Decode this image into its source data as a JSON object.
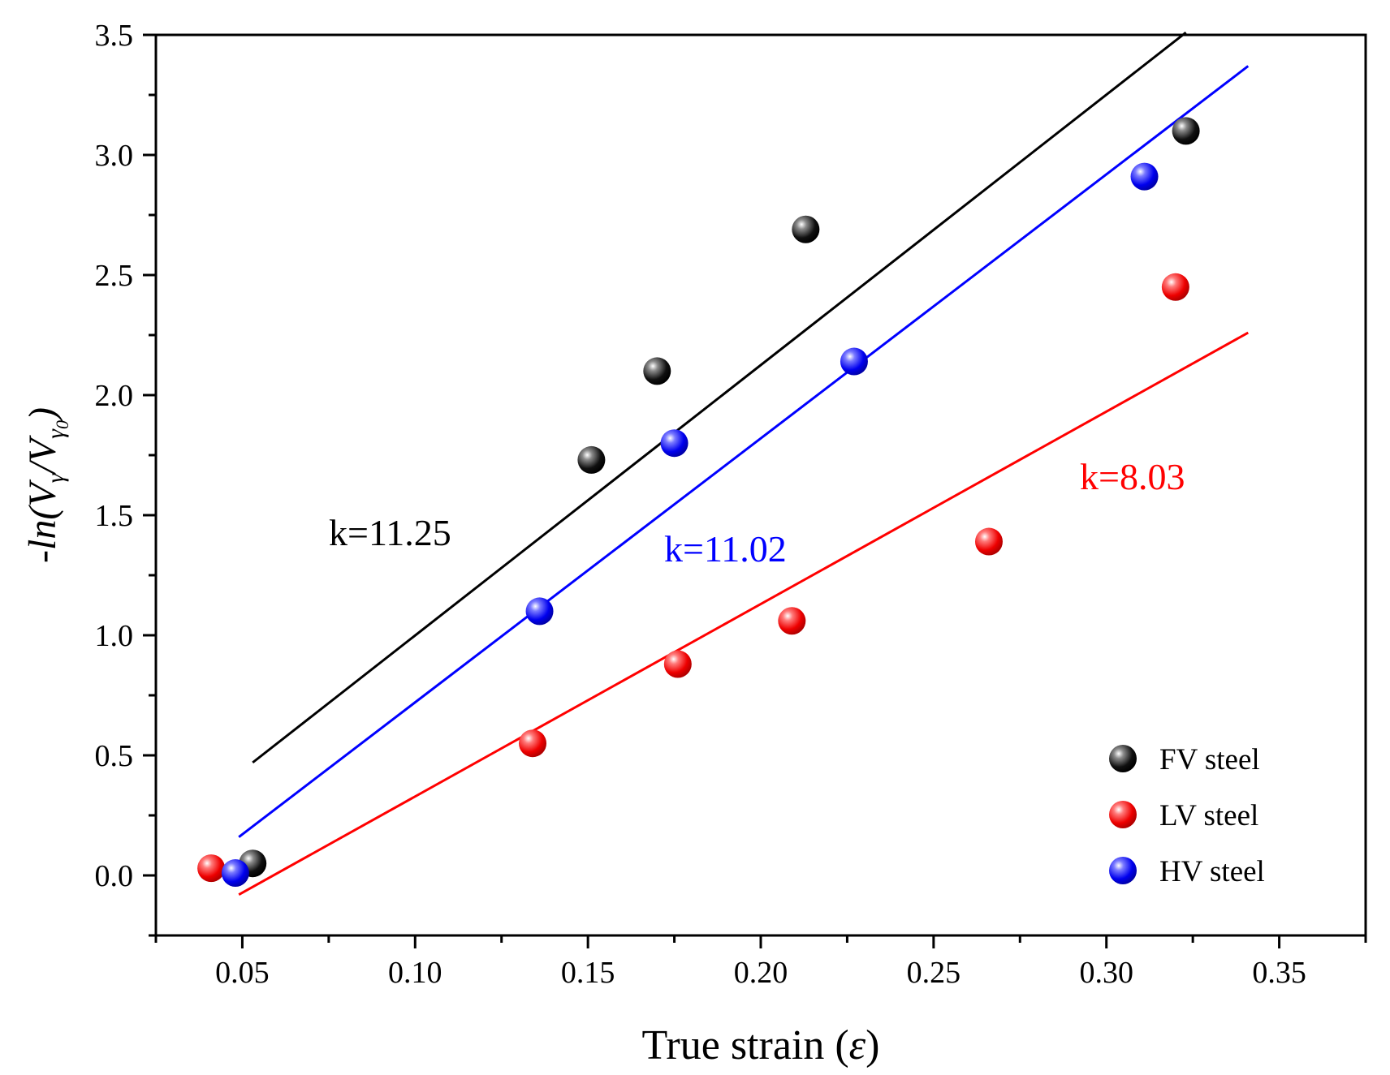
{
  "chart_data": {
    "type": "scatter",
    "xlabel_main": "True strain (",
    "xlabel_symbol": "ε",
    "xlabel_close": ")",
    "ylabel_prefix": "-ln(V",
    "ylabel_sub1": "γ",
    "ylabel_mid": "/V",
    "ylabel_sub2": "γ",
    "ylabel_sub3": "0",
    "ylabel_close": ")",
    "xlim": [
      0.025,
      0.375
    ],
    "ylim": [
      -0.25,
      3.5
    ],
    "xticks": [
      0.05,
      0.1,
      0.15,
      0.2,
      0.25,
      0.3,
      0.35
    ],
    "xtick_labels": [
      "0.05",
      "0.10",
      "0.15",
      "0.20",
      "0.25",
      "0.30",
      "0.35"
    ],
    "yticks": [
      0.0,
      0.5,
      1.0,
      1.5,
      2.0,
      2.5,
      3.0,
      3.5
    ],
    "ytick_labels": [
      "0.0",
      "0.5",
      "1.0",
      "1.5",
      "2.0",
      "2.5",
      "3.0",
      "3.5"
    ],
    "series": [
      {
        "name": "FV steel",
        "color": "#000000",
        "points": [
          [
            0.053,
            0.05
          ],
          [
            0.151,
            1.73
          ],
          [
            0.17,
            2.1
          ],
          [
            0.213,
            2.69
          ],
          [
            0.323,
            3.1
          ]
        ],
        "fit": {
          "x": [
            0.053,
            0.323
          ],
          "y": [
            0.47,
            3.51
          ]
        },
        "annotation": "k=11.25"
      },
      {
        "name": "LV steel",
        "color": "#ff0000",
        "points": [
          [
            0.041,
            0.03
          ],
          [
            0.134,
            0.55
          ],
          [
            0.176,
            0.88
          ],
          [
            0.209,
            1.06
          ],
          [
            0.266,
            1.39
          ],
          [
            0.32,
            2.45
          ]
        ],
        "fit": {
          "x": [
            0.049,
            0.341
          ],
          "y": [
            -0.08,
            2.26
          ]
        },
        "annotation": "k=8.03"
      },
      {
        "name": "HV steel",
        "color": "#0000ff",
        "points": [
          [
            0.048,
            0.01
          ],
          [
            0.136,
            1.1
          ],
          [
            0.175,
            1.8
          ],
          [
            0.227,
            2.14
          ],
          [
            0.311,
            2.91
          ]
        ],
        "fit": {
          "x": [
            0.049,
            0.341
          ],
          "y": [
            0.16,
            3.37
          ]
        },
        "annotation": "k=11.02"
      }
    ],
    "legend_position": "bottom-right"
  }
}
